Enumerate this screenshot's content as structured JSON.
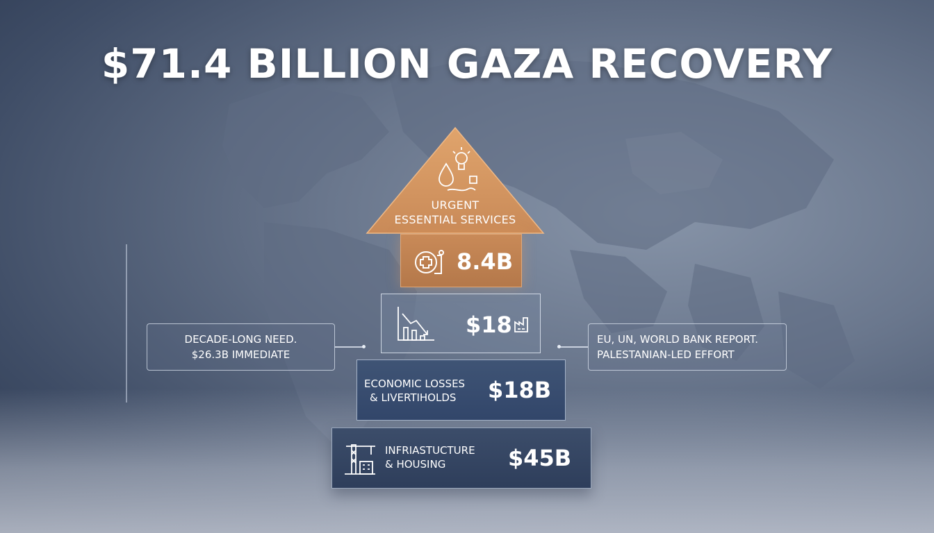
{
  "title": "$71.4 BILLION GAZA RECOVERY",
  "pyramid": {
    "apex": {
      "label_line1": "URGENT",
      "label_line2": "ESSENTIAL SERVICES",
      "icon": "water-drop-lightbulb-icon",
      "color": "#c98a58"
    },
    "tiers": [
      {
        "value": "8.4B",
        "icon": "medical-cross-icon",
        "color": "#b4784a"
      },
      {
        "value": "$18",
        "icons": [
          "declining-chart-icon",
          "factory-icon"
        ]
      },
      {
        "label_line1": "ECONOMIC LOSSES",
        "label_line2": "& LIVERTIHOLDS",
        "value": "$18B"
      },
      {
        "label_line1": "INFRIASTUCTURE",
        "label_line2": "& HOUSING",
        "value": "$45B",
        "icon": "construction-crane-icon"
      }
    ]
  },
  "callouts": {
    "left": {
      "line1": "DECADE-LONG NEED.",
      "line2": "$26.3B IMMEDIATE"
    },
    "right": {
      "line1": "EU, UN, WORLD BANK REPORT.",
      "line2": "PALESTANIAN-LED EFFORT"
    }
  }
}
